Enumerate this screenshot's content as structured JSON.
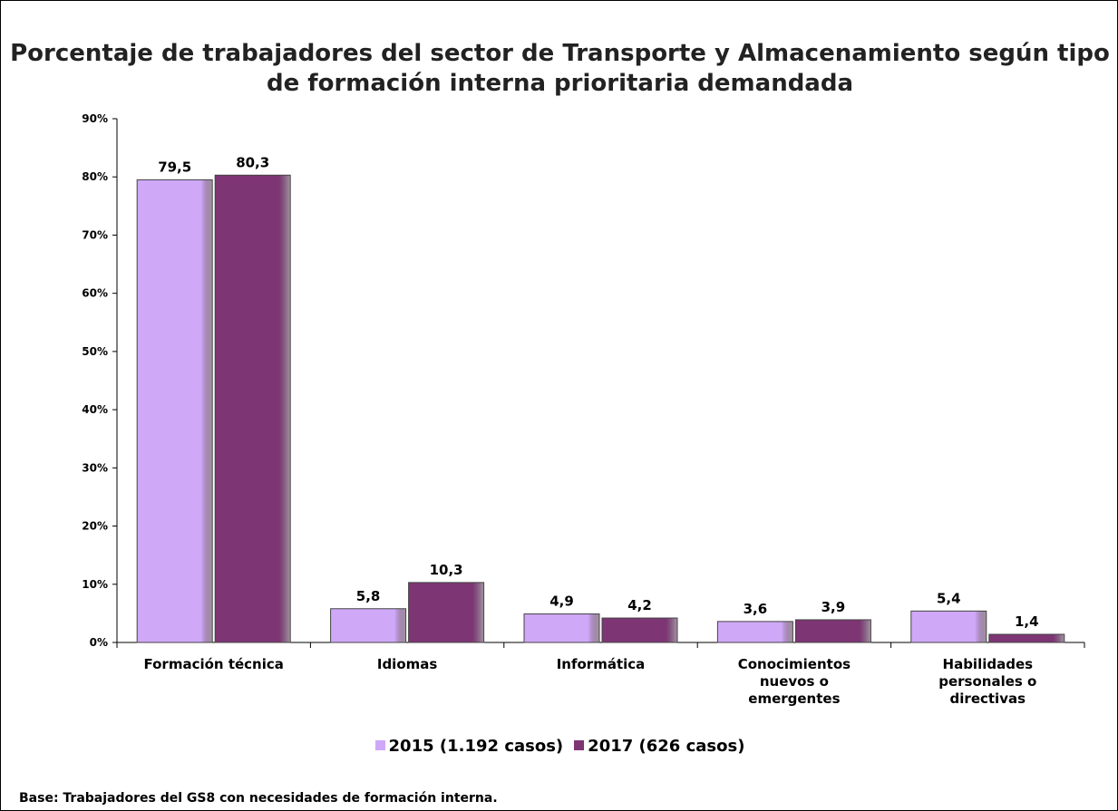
{
  "chart_data": {
    "type": "bar",
    "title": "Porcentaje de trabajadores del sector de Transporte y Almacenamiento según tipo de formación interna prioritaria demandada",
    "categories": [
      "Formación técnica",
      "Idiomas",
      "Informática",
      "Conocimientos nuevos o emergentes",
      "Habilidades personales o directivas"
    ],
    "series": [
      {
        "name": "2015 (1.192 casos)",
        "color": "#cfa8f8",
        "values": [
          79.5,
          5.8,
          4.9,
          3.6,
          5.4
        ],
        "value_labels": [
          "79,5",
          "5,8",
          "4,9",
          "3,6",
          "5,4"
        ]
      },
      {
        "name": "2017 (626 casos)",
        "color": "#7d3574",
        "values": [
          80.3,
          10.3,
          4.2,
          3.9,
          1.4
        ],
        "value_labels": [
          "80,3",
          "10,3",
          "4,2",
          "3,9",
          "1,4"
        ]
      }
    ],
    "ylim": [
      0,
      90
    ],
    "yticks": [
      {
        "value": 0,
        "label": "0%"
      },
      {
        "value": 10,
        "label": "10%"
      },
      {
        "value": 20,
        "label": "20%"
      },
      {
        "value": 30,
        "label": "30%"
      },
      {
        "value": 40,
        "label": "40%"
      },
      {
        "value": 50,
        "label": "50%"
      },
      {
        "value": 60,
        "label": "60%"
      },
      {
        "value": 70,
        "label": "70%"
      },
      {
        "value": 80,
        "label": "80%"
      },
      {
        "value": 90,
        "label": "90%"
      }
    ],
    "legend": "bottom",
    "note": "Base: Trabajadores del GS8 con necesidades de formación interna."
  }
}
